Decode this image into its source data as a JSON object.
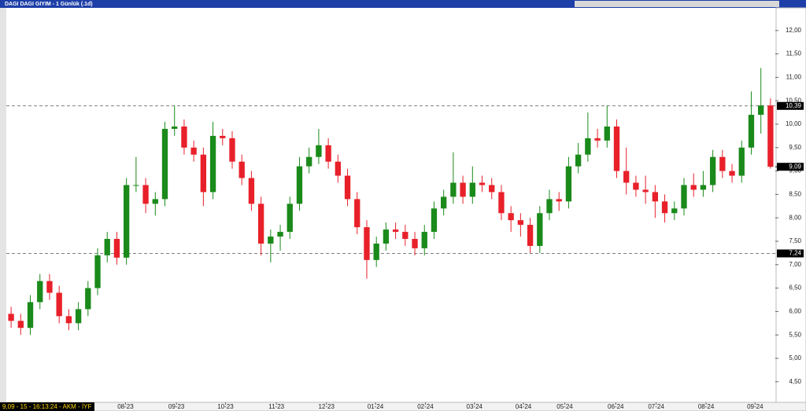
{
  "chart_data": {
    "type": "candlestick",
    "title": "DAGI DAGI GIYIM - 1 Günlük (.1d)",
    "status": "9,09 - 15 - 16:13:24 - AKM - İYF",
    "up_color": "#1a8a1a",
    "down_color": "#e8202a",
    "open": [
      5.95,
      5.8,
      5.65,
      6.2,
      6.65,
      6.4,
      5.9,
      5.75,
      6.05,
      6.5,
      7.2,
      7.55,
      7.15,
      8.7,
      8.7,
      8.3,
      8.4,
      9.9,
      9.95,
      9.5,
      9.35,
      8.55,
      9.75,
      9.7,
      9.2,
      8.85,
      8.3,
      7.45,
      7.6,
      7.7,
      8.3,
      9.1,
      9.3,
      9.55,
      9.2,
      8.9,
      8.4,
      7.8,
      7.1,
      7.45,
      7.75,
      7.7,
      7.55,
      7.35,
      7.7,
      8.2,
      8.45,
      8.75,
      8.45,
      8.75,
      8.7,
      8.55,
      8.1,
      7.95,
      7.85,
      7.4,
      8.1,
      8.4,
      8.35,
      9.1,
      9.35,
      9.7,
      9.65,
      9.95,
      9.0,
      8.75,
      8.6,
      8.55,
      8.35,
      8.1,
      8.2,
      8.7,
      8.6,
      8.7,
      9.3,
      9.0,
      8.9,
      9.5,
      10.2,
      10.4
    ],
    "high": [
      6.1,
      5.95,
      6.35,
      6.8,
      6.8,
      6.55,
      6.05,
      6.2,
      6.65,
      7.35,
      7.7,
      7.7,
      8.85,
      9.3,
      8.85,
      8.55,
      10.05,
      10.4,
      10.1,
      9.65,
      9.5,
      10.05,
      9.9,
      9.85,
      9.35,
      9.0,
      8.45,
      7.75,
      7.85,
      8.45,
      9.3,
      9.5,
      9.9,
      9.7,
      9.35,
      9.05,
      8.55,
      7.95,
      7.6,
      7.9,
      7.9,
      7.85,
      7.7,
      7.85,
      8.35,
      8.6,
      9.4,
      8.9,
      9.1,
      8.9,
      8.85,
      8.7,
      8.25,
      8.1,
      8.0,
      8.25,
      8.6,
      8.55,
      9.3,
      9.6,
      10.25,
      9.9,
      10.4,
      10.1,
      9.5,
      8.9,
      8.9,
      8.7,
      8.5,
      8.35,
      8.85,
      8.95,
      9.0,
      9.45,
      9.45,
      9.15,
      9.65,
      10.7,
      11.2,
      10.55
    ],
    "low": [
      5.65,
      5.5,
      5.5,
      6.05,
      6.25,
      5.75,
      5.6,
      5.6,
      5.9,
      6.35,
      7.05,
      7.0,
      7.0,
      8.55,
      8.1,
      8.05,
      8.25,
      9.75,
      9.35,
      9.2,
      8.25,
      8.4,
      9.55,
      9.05,
      8.7,
      8.15,
      7.2,
      7.05,
      7.3,
      7.55,
      8.15,
      8.95,
      9.15,
      9.05,
      8.75,
      8.25,
      7.65,
      6.7,
      6.95,
      7.3,
      7.55,
      7.4,
      7.2,
      7.2,
      7.55,
      8.05,
      8.3,
      8.3,
      8.3,
      8.55,
      8.4,
      7.95,
      7.7,
      7.6,
      7.25,
      7.25,
      7.95,
      8.15,
      8.2,
      8.95,
      9.2,
      9.5,
      9.5,
      8.85,
      8.5,
      8.45,
      8.3,
      8.0,
      7.9,
      7.95,
      8.05,
      8.45,
      8.45,
      8.55,
      8.85,
      8.75,
      8.75,
      9.35,
      9.8,
      9.05
    ],
    "close": [
      5.8,
      5.65,
      6.2,
      6.65,
      6.4,
      5.9,
      5.75,
      6.05,
      6.5,
      7.2,
      7.55,
      7.15,
      8.7,
      8.7,
      8.3,
      8.4,
      9.9,
      9.95,
      9.5,
      9.35,
      8.55,
      9.75,
      9.7,
      9.2,
      8.85,
      8.3,
      7.45,
      7.6,
      7.7,
      8.3,
      9.1,
      9.3,
      9.55,
      9.2,
      8.9,
      8.4,
      7.8,
      7.1,
      7.45,
      7.75,
      7.7,
      7.55,
      7.35,
      7.7,
      8.2,
      8.45,
      8.75,
      8.45,
      8.75,
      8.7,
      8.55,
      8.1,
      7.95,
      7.85,
      7.4,
      8.1,
      8.4,
      8.35,
      9.1,
      9.35,
      9.7,
      9.65,
      9.95,
      9.0,
      8.75,
      8.6,
      8.55,
      8.35,
      8.1,
      8.2,
      8.7,
      8.6,
      8.7,
      9.3,
      9.0,
      8.9,
      9.5,
      10.2,
      10.4,
      9.09
    ],
    "xlim": [
      -0.5,
      79.5
    ],
    "xticks": [
      {
        "value": 11.9,
        "label": "08-23"
      },
      {
        "value": 17.2,
        "label": "09-23"
      },
      {
        "value": 22.3,
        "label": "10-23"
      },
      {
        "value": 27.6,
        "label": "11-23"
      },
      {
        "value": 32.8,
        "label": "12-23"
      },
      {
        "value": 37.9,
        "label": "01-24"
      },
      {
        "value": 43.1,
        "label": "02-24"
      },
      {
        "value": 48.2,
        "label": "03-24"
      },
      {
        "value": 53.3,
        "label": "04-24"
      },
      {
        "value": 57.6,
        "label": "05-24"
      },
      {
        "value": 62.9,
        "label": "06-24"
      },
      {
        "value": 67.1,
        "label": "07-24"
      },
      {
        "value": 72.3,
        "label": "08-24"
      },
      {
        "value": 77.4,
        "label": "09-24"
      }
    ],
    "ylim": [
      4.06,
      12.45
    ],
    "yticks": [
      {
        "value": 4.5,
        "label": "4,50"
      },
      {
        "value": 5,
        "label": "5,00"
      },
      {
        "value": 5.5,
        "label": "5,50"
      },
      {
        "value": 6,
        "label": "6,00"
      },
      {
        "value": 6.5,
        "label": "6,50"
      },
      {
        "value": 7,
        "label": "7,00"
      },
      {
        "value": 7.5,
        "label": "7,50"
      },
      {
        "value": 8,
        "label": "8,00"
      },
      {
        "value": 8.5,
        "label": "8,50"
      },
      {
        "value": 9,
        "label": "9,00"
      },
      {
        "value": 9.5,
        "label": "9,50"
      },
      {
        "value": 10,
        "label": "10,00"
      },
      {
        "value": 10.5,
        "label": "10,50"
      },
      {
        "value": 11,
        "label": "11,00"
      },
      {
        "value": 11.5,
        "label": "11,50"
      },
      {
        "value": 12,
        "label": "12,00"
      }
    ],
    "hlines": [
      {
        "value": 10.39,
        "label": "10,39"
      },
      {
        "value": 7.24,
        "label": "7,24"
      }
    ],
    "last_price": {
      "value": 9.09,
      "label": "9,09"
    }
  }
}
